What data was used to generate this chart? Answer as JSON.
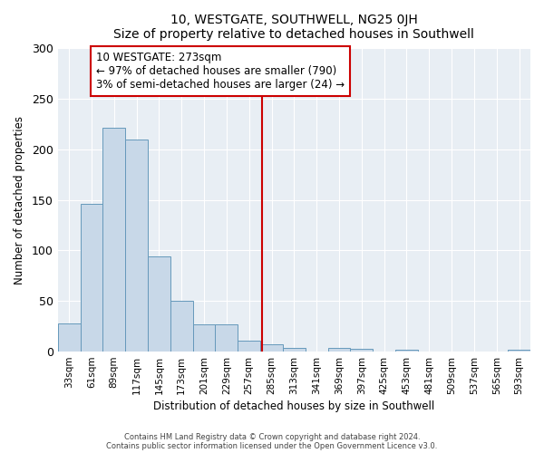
{
  "title": "10, WESTGATE, SOUTHWELL, NG25 0JH",
  "subtitle": "Size of property relative to detached houses in Southwell",
  "xlabel": "Distribution of detached houses by size in Southwell",
  "ylabel": "Number of detached properties",
  "bar_color": "#c8d8e8",
  "bar_edge_color": "#6699bb",
  "background_color": "#e8eef4",
  "bin_labels": [
    "33sqm",
    "61sqm",
    "89sqm",
    "117sqm",
    "145sqm",
    "173sqm",
    "201sqm",
    "229sqm",
    "257sqm",
    "285sqm",
    "313sqm",
    "341sqm",
    "369sqm",
    "397sqm",
    "425sqm",
    "453sqm",
    "481sqm",
    "509sqm",
    "537sqm",
    "565sqm",
    "593sqm"
  ],
  "bar_values": [
    28,
    146,
    221,
    210,
    94,
    50,
    27,
    27,
    11,
    7,
    4,
    0,
    4,
    3,
    0,
    2,
    0,
    0,
    0,
    0,
    2
  ],
  "vline_color": "#cc0000",
  "vline_label": "10 WESTGATE: 273sqm",
  "annotation_line1": "← 97% of detached houses are smaller (790)",
  "annotation_line2": "3% of semi-detached houses are larger (24) →",
  "annotation_box_color": "#ffffff",
  "annotation_box_edge_color": "#cc0000",
  "ylim": [
    0,
    300
  ],
  "yticks": [
    0,
    50,
    100,
    150,
    200,
    250,
    300
  ],
  "footer1": "Contains HM Land Registry data © Crown copyright and database right 2024.",
  "footer2": "Contains public sector information licensed under the Open Government Licence v3.0."
}
